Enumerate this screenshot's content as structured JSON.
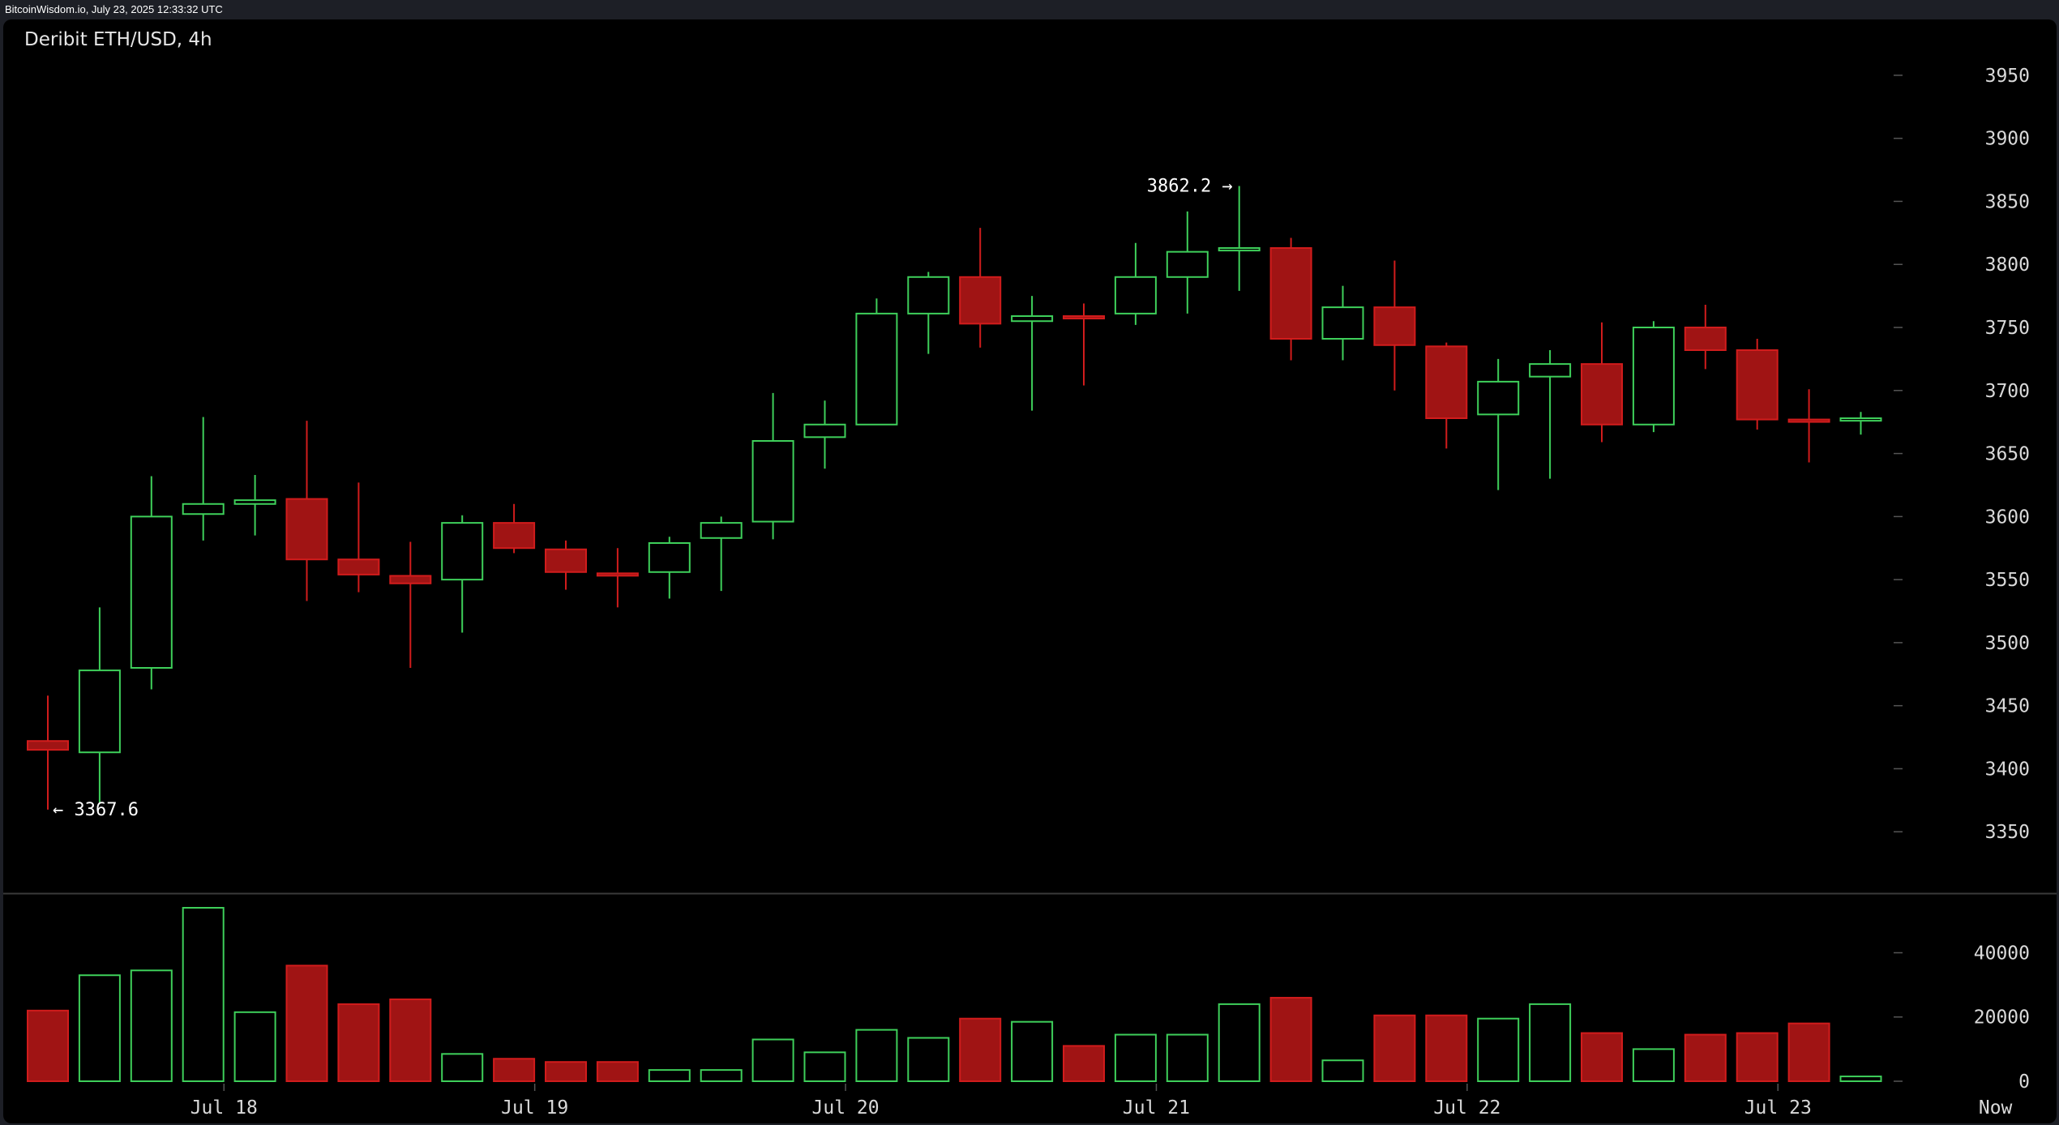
{
  "header": {
    "watermark": "BitcoinWisdom.io, July 23, 2025 12:33:32 UTC"
  },
  "chart_data": {
    "type": "candlestick",
    "title": "Deribit ETH/USD, 4h",
    "colors": {
      "up": "#3ecf5a",
      "down": "#d11c1c",
      "down_fill": "#a01414",
      "background": "#000000",
      "separator": "#3a3a3a"
    },
    "price_axis": {
      "ticks": [
        3350,
        3400,
        3450,
        3500,
        3550,
        3600,
        3650,
        3700,
        3750,
        3800,
        3850,
        3900,
        3950
      ],
      "range": [
        3300,
        3975
      ]
    },
    "volume_axis": {
      "ticks": [
        0,
        20000,
        40000
      ],
      "range": [
        0,
        54000
      ]
    },
    "x_labels": [
      {
        "label": "Jul 18",
        "index": 3.4
      },
      {
        "label": "Jul 19",
        "index": 9.4
      },
      {
        "label": "Jul 20",
        "index": 15.4
      },
      {
        "label": "Jul 21",
        "index": 21.4
      },
      {
        "label": "Jul 22",
        "index": 27.4
      },
      {
        "label": "Jul 23",
        "index": 33.4
      },
      {
        "label": "Now",
        "index": 37.6
      }
    ],
    "annotations": [
      {
        "text": "3862.2 →",
        "index": 23,
        "price": 3862.2,
        "side": "left"
      },
      {
        "text": "← 3367.6",
        "index": 0,
        "price": 3367.6,
        "side": "right"
      }
    ],
    "candles": [
      {
        "o": 3422,
        "h": 3458,
        "l": 3367.6,
        "c": 3415,
        "v": 22000
      },
      {
        "o": 3413,
        "h": 3528,
        "l": 3373,
        "c": 3478,
        "v": 33000
      },
      {
        "o": 3480,
        "h": 3632,
        "l": 3463,
        "c": 3600,
        "v": 34500
      },
      {
        "o": 3602,
        "h": 3679,
        "l": 3581,
        "c": 3610,
        "v": 54000
      },
      {
        "o": 3610,
        "h": 3633,
        "l": 3585,
        "c": 3613,
        "v": 21500
      },
      {
        "o": 3614,
        "h": 3676,
        "l": 3533,
        "c": 3566,
        "v": 36000
      },
      {
        "o": 3566,
        "h": 3627,
        "l": 3540,
        "c": 3554,
        "v": 24000
      },
      {
        "o": 3553,
        "h": 3580,
        "l": 3480,
        "c": 3547,
        "v": 25500
      },
      {
        "o": 3550,
        "h": 3601,
        "l": 3508,
        "c": 3595,
        "v": 8500
      },
      {
        "o": 3595,
        "h": 3610,
        "l": 3571,
        "c": 3575,
        "v": 7000
      },
      {
        "o": 3574,
        "h": 3581,
        "l": 3542,
        "c": 3556,
        "v": 6000
      },
      {
        "o": 3555,
        "h": 3575,
        "l": 3528,
        "c": 3554,
        "v": 6000
      },
      {
        "o": 3556,
        "h": 3584,
        "l": 3535,
        "c": 3579,
        "v": 3500
      },
      {
        "o": 3583,
        "h": 3600,
        "l": 3541,
        "c": 3595,
        "v": 3500
      },
      {
        "o": 3596,
        "h": 3698,
        "l": 3582,
        "c": 3660,
        "v": 13000
      },
      {
        "o": 3663,
        "h": 3692,
        "l": 3638,
        "c": 3673,
        "v": 9000
      },
      {
        "o": 3673,
        "h": 3773,
        "l": 3673,
        "c": 3761,
        "v": 16000
      },
      {
        "o": 3761,
        "h": 3794,
        "l": 3729,
        "c": 3790,
        "v": 13500
      },
      {
        "o": 3790,
        "h": 3829,
        "l": 3734,
        "c": 3753,
        "v": 19500
      },
      {
        "o": 3755,
        "h": 3775,
        "l": 3684,
        "c": 3759,
        "v": 18500
      },
      {
        "o": 3759,
        "h": 3769,
        "l": 3704,
        "c": 3758,
        "v": 11000
      },
      {
        "o": 3761,
        "h": 3817,
        "l": 3752,
        "c": 3790,
        "v": 14500
      },
      {
        "o": 3790,
        "h": 3842,
        "l": 3761,
        "c": 3810,
        "v": 14500
      },
      {
        "o": 3811,
        "h": 3862.2,
        "l": 3779,
        "c": 3813,
        "v": 24000
      },
      {
        "o": 3813,
        "h": 3821,
        "l": 3724,
        "c": 3741,
        "v": 26000
      },
      {
        "o": 3741,
        "h": 3783,
        "l": 3724,
        "c": 3766,
        "v": 6500
      },
      {
        "o": 3766,
        "h": 3803,
        "l": 3700,
        "c": 3736,
        "v": 20500
      },
      {
        "o": 3735,
        "h": 3738,
        "l": 3654,
        "c": 3678,
        "v": 20500
      },
      {
        "o": 3681,
        "h": 3725,
        "l": 3621,
        "c": 3707,
        "v": 19500
      },
      {
        "o": 3711,
        "h": 3732,
        "l": 3630,
        "c": 3721,
        "v": 24000
      },
      {
        "o": 3721,
        "h": 3754,
        "l": 3659,
        "c": 3673,
        "v": 15000
      },
      {
        "o": 3673,
        "h": 3755,
        "l": 3667,
        "c": 3750,
        "v": 10000
      },
      {
        "o": 3750,
        "h": 3768,
        "l": 3717,
        "c": 3732,
        "v": 14500
      },
      {
        "o": 3732,
        "h": 3741,
        "l": 3669,
        "c": 3677,
        "v": 15000
      },
      {
        "o": 3677,
        "h": 3701,
        "l": 3643,
        "c": 3676,
        "v": 18000
      },
      {
        "o": 3676,
        "h": 3683,
        "l": 3665,
        "c": 3678,
        "v": 1500
      }
    ]
  }
}
